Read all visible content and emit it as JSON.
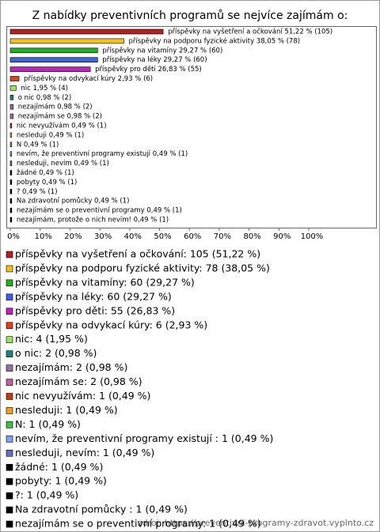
{
  "chart_data": {
    "type": "bar",
    "orientation": "horizontal",
    "title": "Z nabídky preventivních programů se nejvíce zajímám o:",
    "values": [
      51.22,
      38.05,
      29.27,
      29.27,
      26.83,
      2.93,
      1.95,
      0.98,
      0.98,
      0.98,
      0.49,
      0.49,
      0.49,
      0.49,
      0.49,
      0.49,
      0.49,
      0.49,
      0.49,
      0.49,
      0.49
    ],
    "value_labels": [
      "příspěvky na vyšetření a očkování 51,22 % (105)",
      "příspěvky na podporu fyzické aktivity 38,05 % (78)",
      "příspěvky na vitamíny 29,27 % (60)",
      "příspěvky na léky 29,27 % (60)",
      "příspěvky pro děti 26,83 % (55)",
      "příspěvky na odvykací kúry 2,93 % (6)",
      "nic 1,95 % (4)",
      "o nic 0,98 % (2)",
      "nezajímám 0,98 % (2)",
      "nezajímám se 0,98 % (2)",
      "nic nevyužívám 0,49 % (1)",
      "nesleduji 0,49 % (1)",
      "N 0,49 % (1)",
      "nevím, že preventivní programy existují  0,49 % (1)",
      "nesleduji, nevím 0,49 % (1)",
      "žádné 0,49 % (1)",
      "pobyty 0,49 % (1)",
      "? 0,49 % (1)",
      "Na zdravotní pomůcky  0,49 % (1)",
      "nezajímám se o preventivní programy 0,49 % (1)",
      "nezajímám, protože o nich nevím! 0,49 % (1)"
    ],
    "categories": [
      "příspěvky na vyšetření a očkování: 105 (51,22 %)",
      "příspěvky na podporu fyzické aktivity: 78 (38,05 %)",
      "příspěvky na vitamíny: 60 (29,27 %)",
      "příspěvky na léky: 60 (29,27 %)",
      "příspěvky pro děti: 55 (26,83 %)",
      "příspěvky na odvykací kúry: 6 (2,93 %)",
      "nic: 4 (1,95 %)",
      "o nic: 2 (0,98 %)",
      "nezajímám: 2 (0,98 %)",
      "nezajímám se: 2 (0,98 %)",
      "nic nevyužívám: 1 (0,49 %)",
      "nesleduji: 1 (0,49 %)",
      "N: 1 (0,49 %)",
      "nevím, že preventivní programy existují : 1 (0,49 %)",
      "nesleduji, nevím: 1 (0,49 %)",
      "žádné: 1 (0,49 %)",
      "pobyty: 1 (0,49 %)",
      "?: 1 (0,49 %)",
      "Na zdravotní pomůcky : 1 (0,49 %)",
      "nezajímám se o preventivní programy: 1 (0,49 %)",
      "nezajímám, protože o nich nevím!: 1 (0,49 %)"
    ],
    "colors": [
      "#b22020",
      "#f0c020",
      "#20b020",
      "#4060e0",
      "#c020c0",
      "#e04020",
      "#a0e060",
      "#208080",
      "#9070a0",
      "#c060a0",
      "#c04010",
      "#f0a020",
      "#40c040",
      "#80a0f0",
      "#6070c0",
      "#000000",
      "#000000",
      "#000000",
      "#000000",
      "#000000",
      "#000000"
    ],
    "xlim": [
      0,
      100
    ],
    "xticks": [
      {
        "value": 0,
        "label": "0%"
      },
      {
        "value": 10,
        "label": "10%"
      },
      {
        "value": 20,
        "label": "20%"
      },
      {
        "value": 30,
        "label": "30%"
      },
      {
        "value": 40,
        "label": "40%"
      },
      {
        "value": 50,
        "label": "50%"
      },
      {
        "value": 60,
        "label": "60%"
      },
      {
        "value": 70,
        "label": "70%"
      },
      {
        "value": 80,
        "label": "80%"
      },
      {
        "value": 90,
        "label": "90%"
      },
      {
        "value": 100,
        "label": "100%"
      }
    ],
    "source": "zdroj: https://preventivni-programy-zdravot.vyplnto.cz"
  }
}
